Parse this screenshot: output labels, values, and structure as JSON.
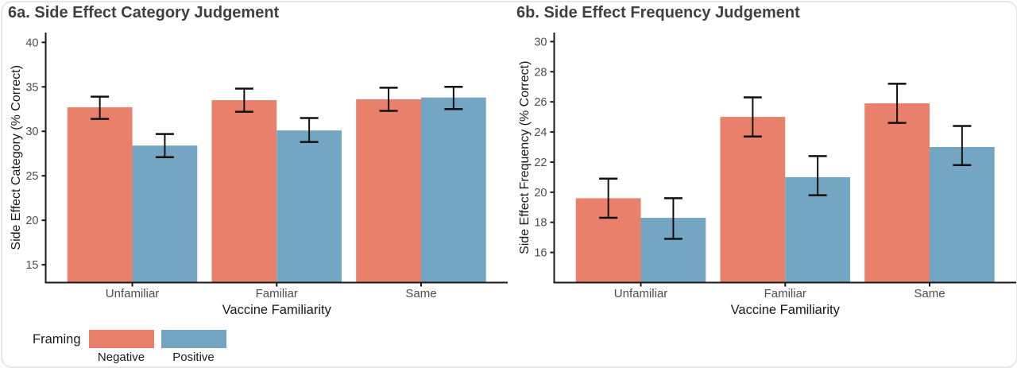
{
  "legend": {
    "title": "Framing",
    "items": [
      {
        "label": "Negative",
        "color": "#E8806B"
      },
      {
        "label": "Positive",
        "color": "#74A6C3"
      }
    ]
  },
  "colors": {
    "negative": "#E8806B",
    "positive": "#74A6C3",
    "title_text": "#404040",
    "tick_text": "#4d4d4d",
    "axis_text": "#1a1a1a",
    "axis_line": "#1a1a1a",
    "errorbar": "#101010"
  },
  "chart_data": [
    {
      "type": "bar",
      "title": "6a. Side Effect Category Judgement",
      "xlabel": "Vaccine Familiarity",
      "ylabel": "Side Effect Category (% Correct)",
      "categories": [
        "Unfamiliar",
        "Familiar",
        "Same"
      ],
      "yticks": [
        15,
        20,
        25,
        30,
        35,
        40
      ],
      "ylim": [
        13.0,
        41.1
      ],
      "grid": false,
      "legend_position": "bottom-left",
      "series": [
        {
          "name": "Negative",
          "color": "#E8806B",
          "values": [
            32.7,
            33.5,
            33.6
          ],
          "ci_low": [
            31.4,
            32.2,
            32.3
          ],
          "ci_high": [
            33.9,
            34.8,
            34.9
          ]
        },
        {
          "name": "Positive",
          "color": "#74A6C3",
          "values": [
            28.4,
            30.1,
            33.8
          ],
          "ci_low": [
            27.1,
            28.8,
            32.5
          ],
          "ci_high": [
            29.7,
            31.5,
            35.0
          ]
        }
      ]
    },
    {
      "type": "bar",
      "title": "6b. Side Effect Frequency Judgement",
      "xlabel": "Vaccine Familiarity",
      "ylabel": "Side Effect Frequency (% Correct)",
      "categories": [
        "Unfamiliar",
        "Familiar",
        "Same"
      ],
      "yticks": [
        16,
        18,
        20,
        22,
        24,
        26,
        28,
        30
      ],
      "ylim": [
        14.0,
        30.6
      ],
      "grid": false,
      "legend_position": "bottom-left",
      "series": [
        {
          "name": "Negative",
          "color": "#E8806B",
          "values": [
            19.6,
            25.0,
            25.9
          ],
          "ci_low": [
            18.3,
            23.7,
            24.6
          ],
          "ci_high": [
            20.9,
            26.3,
            27.2
          ]
        },
        {
          "name": "Positive",
          "color": "#74A6C3",
          "values": [
            18.3,
            21.0,
            23.0
          ],
          "ci_low": [
            16.9,
            19.8,
            21.8
          ],
          "ci_high": [
            19.6,
            22.4,
            24.4
          ]
        }
      ]
    }
  ]
}
